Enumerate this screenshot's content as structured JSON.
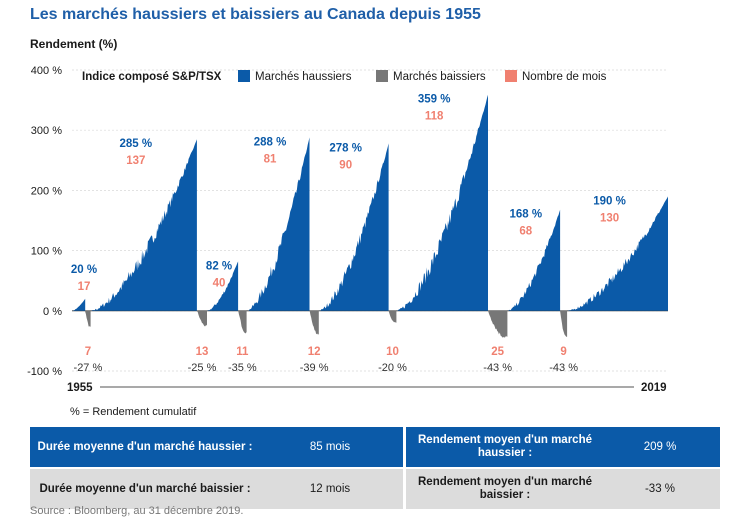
{
  "title": "Les marchés haussiers et baissiers au Canada depuis 1955",
  "footnote": "% = Rendement cumulatif",
  "source": "Source : Bloomberg, au 31 décembre 2019.",
  "colors": {
    "bull": "#0b5aa8",
    "bear": "#777777",
    "months": "#f08070",
    "title": "#1f5fa8"
  },
  "stats": [
    {
      "label1": "Durée moyenne d'un marché haussier :",
      "value1": "85 mois",
      "label2": "Rendement moyen d'un marché haussier :",
      "value2": "209 %"
    },
    {
      "label1": "Durée moyenne d'un marché baissier :",
      "value1": "12 mois",
      "label2": "Rendement moyen d'un marché baissier :",
      "value2": "-33 %"
    }
  ],
  "chart_data": {
    "type": "area",
    "ylabel": "Rendement (%)",
    "ylim": [
      -100,
      400
    ],
    "yticks": [
      -100,
      0,
      100,
      200,
      300,
      400
    ],
    "ytick_labels": [
      "-100 %",
      "0 %",
      "100 %",
      "200 %",
      "300 %",
      "400 %"
    ],
    "x_start_label": "1955",
    "x_end_label": "2019",
    "legend_title": "Indice composé S&P/TSX",
    "legend": [
      {
        "name": "Marchés haussiers",
        "type": "bull"
      },
      {
        "name": "Marchés baissiers",
        "type": "bear"
      },
      {
        "name": "Nombre de mois",
        "type": "months"
      }
    ],
    "bull_markets": [
      {
        "return": 20,
        "return_label": "20 %",
        "months": 17
      },
      {
        "return": 285,
        "return_label": "285 %",
        "months": 137
      },
      {
        "return": 82,
        "return_label": "82 %",
        "months": 40
      },
      {
        "return": 288,
        "return_label": "288 %",
        "months": 81
      },
      {
        "return": 278,
        "return_label": "278 %",
        "months": 90
      },
      {
        "return": 359,
        "return_label": "359 %",
        "months": 118
      },
      {
        "return": 168,
        "return_label": "168 %",
        "months": 68
      },
      {
        "return": 190,
        "return_label": "190 %",
        "months": 130
      }
    ],
    "bear_markets": [
      {
        "return": -27,
        "return_label": "-27 %",
        "months": 7
      },
      {
        "return": -25,
        "return_label": "-25 %",
        "months": 13
      },
      {
        "return": -35,
        "return_label": "-35 %",
        "months": 11
      },
      {
        "return": -39,
        "return_label": "-39 %",
        "months": 12
      },
      {
        "return": -20,
        "return_label": "-20 %",
        "months": 10
      },
      {
        "return": -43,
        "return_label": "-43 %",
        "months": 25
      },
      {
        "return": -43,
        "return_label": "-43 %",
        "months": 9
      }
    ]
  }
}
